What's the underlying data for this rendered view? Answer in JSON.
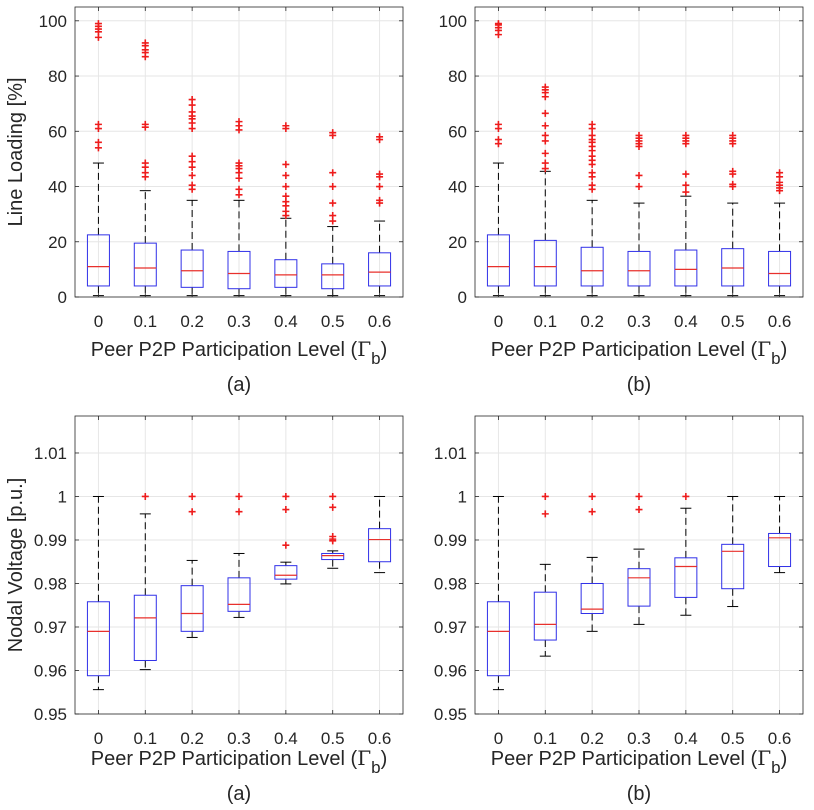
{
  "chart_data": [
    {
      "type": "boxplot",
      "caption": "(a)",
      "title": "",
      "xlabel": "Peer P2P Participation Level (",
      "xlabel_symbol": "Γ",
      "xlabel_sub": "b",
      "xlabel_end": ")",
      "ylabel": "Line Loading [%]",
      "ylim": [
        0,
        105
      ],
      "yticks": [
        "0",
        "20",
        "40",
        "60",
        "80",
        "100"
      ],
      "ytick_values": [
        0,
        20,
        40,
        60,
        80,
        100
      ],
      "grid": true,
      "categories": [
        "0",
        "0.1",
        "0.2",
        "0.3",
        "0.4",
        "0.5",
        "0.6"
      ],
      "boxes": [
        {
          "min": 0.5,
          "q1": 4,
          "median": 11,
          "q3": 22.5,
          "max": 48.5,
          "outliers": [
            54,
            56,
            61,
            62.5,
            94,
            96,
            97,
            98,
            99
          ]
        },
        {
          "min": 0.5,
          "q1": 4,
          "median": 10.5,
          "q3": 19.5,
          "max": 38.5,
          "outliers": [
            43.5,
            45,
            47,
            48.5,
            61.5,
            62.5,
            87,
            88.5,
            89.5,
            91,
            92
          ]
        },
        {
          "min": 0.5,
          "q1": 3.5,
          "median": 9.5,
          "q3": 17,
          "max": 35,
          "outliers": [
            39,
            40.5,
            44,
            47,
            49,
            51,
            61,
            63,
            64.5,
            65.5,
            67,
            69.5,
            71.5
          ]
        },
        {
          "min": 0.5,
          "q1": 3,
          "median": 8.5,
          "q3": 16.5,
          "max": 35,
          "outliers": [
            37,
            39,
            43,
            45,
            46.5,
            47.5,
            48.5,
            60.5,
            62,
            63.5
          ]
        },
        {
          "min": 0.5,
          "q1": 3.5,
          "median": 8,
          "q3": 13.5,
          "max": 28.5,
          "outliers": [
            29.5,
            31,
            33,
            34.5,
            36.5,
            40,
            44,
            48,
            61,
            62
          ]
        },
        {
          "min": 0.5,
          "q1": 3,
          "median": 8,
          "q3": 12,
          "max": 25.5,
          "outliers": [
            27.5,
            29.5,
            34,
            40,
            45,
            58.5,
            59.5
          ]
        },
        {
          "min": 0.5,
          "q1": 4,
          "median": 9,
          "q3": 16,
          "max": 27.5,
          "outliers": [
            34,
            35,
            40,
            43.5,
            44.5,
            57,
            58
          ]
        }
      ]
    },
    {
      "type": "boxplot",
      "caption": "(b)",
      "title": "",
      "xlabel": "Peer P2P Participation Level (",
      "xlabel_symbol": "Γ",
      "xlabel_sub": "b",
      "xlabel_end": ")",
      "ylabel": "",
      "ylim": [
        0,
        105
      ],
      "yticks": [
        "0",
        "20",
        "40",
        "60",
        "80",
        "100"
      ],
      "ytick_values": [
        0,
        20,
        40,
        60,
        80,
        100
      ],
      "grid": true,
      "categories": [
        "0",
        "0.1",
        "0.2",
        "0.3",
        "0.4",
        "0.5",
        "0.6"
      ],
      "boxes": [
        {
          "min": 0.5,
          "q1": 4,
          "median": 11,
          "q3": 22.5,
          "max": 48.5,
          "outliers": [
            55.5,
            57,
            61,
            62.5,
            95,
            96.5,
            97.5,
            98.5,
            99
          ]
        },
        {
          "min": 0.5,
          "q1": 4,
          "median": 11,
          "q3": 20.5,
          "max": 45.5,
          "outliers": [
            46.5,
            48.5,
            52,
            56.5,
            58.5,
            62,
            66.5,
            72.5,
            74,
            75,
            76
          ]
        },
        {
          "min": 0.5,
          "q1": 4,
          "median": 9.5,
          "q3": 18,
          "max": 35,
          "outliers": [
            39,
            40.5,
            43.5,
            45,
            48,
            49.5,
            51,
            53,
            54.5,
            56,
            57,
            58.5,
            61,
            62.5
          ]
        },
        {
          "min": 0.5,
          "q1": 4,
          "median": 9.5,
          "q3": 16.5,
          "max": 34,
          "outliers": [
            40,
            44,
            54.5,
            55.5,
            56.5,
            57.5,
            58.5
          ]
        },
        {
          "min": 0.5,
          "q1": 4,
          "median": 10,
          "q3": 17,
          "max": 36.5,
          "outliers": [
            38,
            40.5,
            44.5,
            55.5,
            56.5,
            57.5,
            58.5
          ]
        },
        {
          "min": 0.5,
          "q1": 4,
          "median": 10.5,
          "q3": 17.5,
          "max": 34,
          "outliers": [
            40,
            40.8,
            44.5,
            45.5,
            55.5,
            56.5,
            57.5,
            58.5
          ]
        },
        {
          "min": 0.5,
          "q1": 4,
          "median": 8.5,
          "q3": 16.5,
          "max": 34,
          "outliers": [
            38.5,
            39.5,
            40.5,
            41.5,
            43.5,
            45
          ]
        }
      ]
    },
    {
      "type": "boxplot",
      "caption": "(a)",
      "title": "",
      "xlabel": "Peer P2P Participation Level (",
      "xlabel_symbol": "Γ",
      "xlabel_sub": "b",
      "xlabel_end": ")",
      "ylabel": "Nodal Voltage [p.u.]",
      "ylim": [
        0.95,
        1.0185
      ],
      "yticks": [
        "0.95",
        "0.96",
        "0.97",
        "0.98",
        "0.99",
        "1",
        "1.01"
      ],
      "ytick_values": [
        0.95,
        0.96,
        0.97,
        0.98,
        0.99,
        1.0,
        1.01
      ],
      "grid": true,
      "categories": [
        "0",
        "0.1",
        "0.2",
        "0.3",
        "0.4",
        "0.5",
        "0.6"
      ],
      "boxes": [
        {
          "min": 0.9556,
          "q1": 0.9588,
          "median": 0.969,
          "q3": 0.9758,
          "max": 1.0,
          "outliers": []
        },
        {
          "min": 0.9602,
          "q1": 0.9623,
          "median": 0.9721,
          "q3": 0.9773,
          "max": 0.996,
          "outliers": [
            1.0
          ]
        },
        {
          "min": 0.9676,
          "q1": 0.969,
          "median": 0.9731,
          "q3": 0.9795,
          "max": 0.9853,
          "outliers": [
            0.9965,
            1.0
          ]
        },
        {
          "min": 0.9722,
          "q1": 0.9736,
          "median": 0.9752,
          "q3": 0.9813,
          "max": 0.9869,
          "outliers": [
            0.9965,
            1.0
          ]
        },
        {
          "min": 0.9799,
          "q1": 0.981,
          "median": 0.9819,
          "q3": 0.9841,
          "max": 0.9849,
          "outliers": [
            0.9888,
            0.997,
            1.0
          ]
        },
        {
          "min": 0.9835,
          "q1": 0.9855,
          "median": 0.9864,
          "q3": 0.9869,
          "max": 0.9875,
          "outliers": [
            0.9898,
            0.9902,
            0.9908,
            0.9975,
            1.0
          ]
        },
        {
          "min": 0.9825,
          "q1": 0.985,
          "median": 0.9901,
          "q3": 0.9926,
          "max": 1.0,
          "outliers": []
        }
      ]
    },
    {
      "type": "boxplot",
      "caption": "(b)",
      "title": "",
      "xlabel": "Peer P2P Participation Level (",
      "xlabel_symbol": "Γ",
      "xlabel_sub": "b",
      "xlabel_end": ")",
      "ylabel": "",
      "ylim": [
        0.95,
        1.0185
      ],
      "yticks": [
        "0.95",
        "0.96",
        "0.97",
        "0.98",
        "0.99",
        "1",
        "1.01"
      ],
      "ytick_values": [
        0.95,
        0.96,
        0.97,
        0.98,
        0.99,
        1.0,
        1.01
      ],
      "grid": true,
      "categories": [
        "0",
        "0.1",
        "0.2",
        "0.3",
        "0.4",
        "0.5",
        "0.6"
      ],
      "boxes": [
        {
          "min": 0.9556,
          "q1": 0.9588,
          "median": 0.969,
          "q3": 0.9758,
          "max": 1.0,
          "outliers": []
        },
        {
          "min": 0.9633,
          "q1": 0.967,
          "median": 0.9706,
          "q3": 0.978,
          "max": 0.9844,
          "outliers": [
            0.996,
            1.0
          ]
        },
        {
          "min": 0.969,
          "q1": 0.9731,
          "median": 0.9741,
          "q3": 0.98,
          "max": 0.986,
          "outliers": [
            0.9965,
            1.0
          ]
        },
        {
          "min": 0.9706,
          "q1": 0.9748,
          "median": 0.9813,
          "q3": 0.9834,
          "max": 0.9879,
          "outliers": [
            0.997,
            1.0
          ]
        },
        {
          "min": 0.9727,
          "q1": 0.9768,
          "median": 0.9839,
          "q3": 0.9859,
          "max": 0.9973,
          "outliers": [
            1.0
          ]
        },
        {
          "min": 0.9747,
          "q1": 0.9788,
          "median": 0.9874,
          "q3": 0.989,
          "max": 1.0,
          "outliers": []
        },
        {
          "min": 0.9825,
          "q1": 0.9839,
          "median": 0.9905,
          "q3": 0.9915,
          "max": 1.0,
          "outliers": []
        }
      ]
    }
  ]
}
